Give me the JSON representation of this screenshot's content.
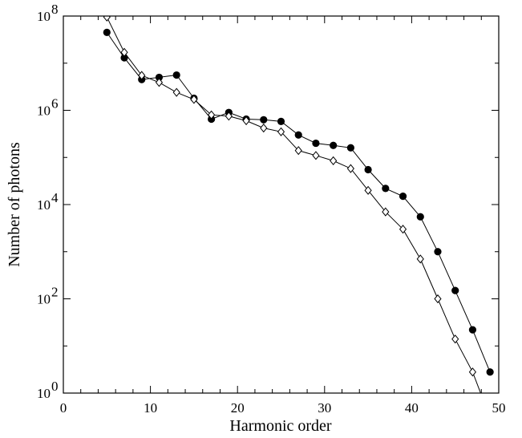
{
  "chart_data": {
    "type": "line",
    "title": "",
    "xlabel": "Harmonic order",
    "ylabel": "Number of photons",
    "xlim": [
      0,
      50
    ],
    "ylim": [
      1,
      100000000
    ],
    "y_scale": "log",
    "grid": false,
    "x_ticks": [
      {
        "value": 0,
        "label": "0"
      },
      {
        "value": 10,
        "label": "10"
      },
      {
        "value": 20,
        "label": "20"
      },
      {
        "value": 30,
        "label": "30"
      },
      {
        "value": 40,
        "label": "40"
      },
      {
        "value": 50,
        "label": "50"
      }
    ],
    "y_ticks": [
      {
        "value": 1,
        "base": "10",
        "exp": "0"
      },
      {
        "value": 100,
        "base": "10",
        "exp": "2"
      },
      {
        "value": 10000,
        "base": "10",
        "exp": "4"
      },
      {
        "value": 1000000,
        "base": "10",
        "exp": "6"
      },
      {
        "value": 100000000,
        "base": "10",
        "exp": "8"
      }
    ],
    "x_minor_step": 2,
    "series": [
      {
        "marker": "filled-circle",
        "color": "#000000",
        "x": [
          5,
          7,
          9,
          11,
          13,
          15,
          17,
          19,
          21,
          23,
          25,
          27,
          29,
          31,
          33,
          35,
          37,
          39,
          41,
          43,
          45,
          47,
          49
        ],
        "y": [
          45000000,
          13000000,
          4500000,
          5000000,
          5600000,
          1800000,
          650000,
          900000,
          650000,
          630000,
          580000,
          300000,
          200000,
          180000,
          160000,
          55000,
          22000,
          15000,
          5500,
          1000,
          150,
          22,
          2.8
        ]
      },
      {
        "marker": "open-diamond",
        "color": "#000000",
        "x": [
          5,
          7,
          9,
          11,
          13,
          15,
          17,
          19,
          21,
          23,
          25,
          27,
          29,
          31,
          33,
          35,
          37,
          39,
          41,
          43,
          45,
          47,
          49
        ],
        "y": [
          95000000,
          17000000,
          5500000,
          3900000,
          2400000,
          1700000,
          800000,
          750000,
          600000,
          420000,
          350000,
          140000,
          110000,
          85000,
          58000,
          20000,
          7000,
          3000,
          700,
          100,
          14,
          2.8,
          0.3
        ]
      }
    ]
  }
}
